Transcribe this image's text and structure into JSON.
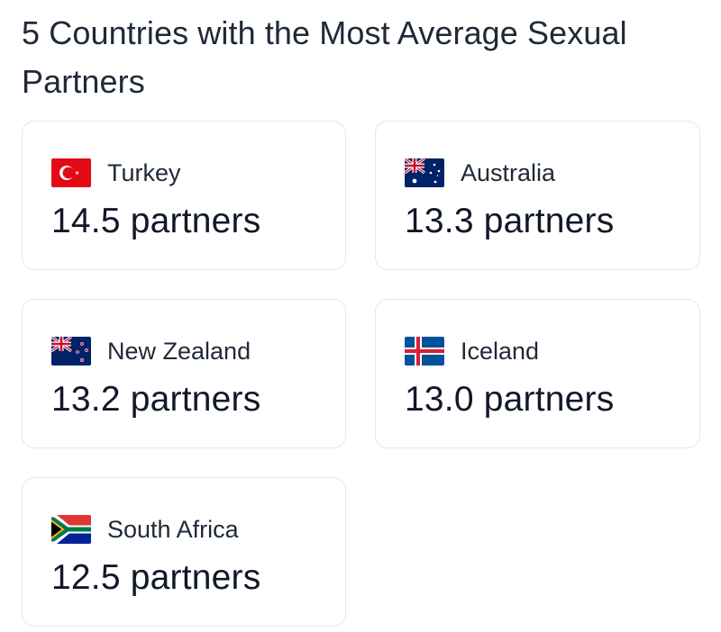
{
  "title": "5 Countries with the Most Average Sexual Partners",
  "countries": [
    {
      "name": "Turkey",
      "value": "14.5 partners",
      "flag_icon": "turkey-flag-icon"
    },
    {
      "name": "Australia",
      "value": "13.3 partners",
      "flag_icon": "australia-flag-icon"
    },
    {
      "name": "New Zealand",
      "value": "13.2 partners",
      "flag_icon": "new-zealand-flag-icon"
    },
    {
      "name": "Iceland",
      "value": "13.0 partners",
      "flag_icon": "iceland-flag-icon"
    },
    {
      "name": "South Africa",
      "value": "12.5 partners",
      "flag_icon": "south-africa-flag-icon"
    }
  ],
  "colors": {
    "card_border": "#e3e6ea",
    "text": "#1f2937",
    "turkey_red": "#e30a17",
    "australia_blue": "#012169",
    "iceland_blue": "#02529c",
    "iceland_red": "#dc1e35",
    "sa_green": "#007a4d",
    "sa_yellow": "#ffb612",
    "sa_blue": "#002395",
    "sa_red": "#de3831"
  }
}
